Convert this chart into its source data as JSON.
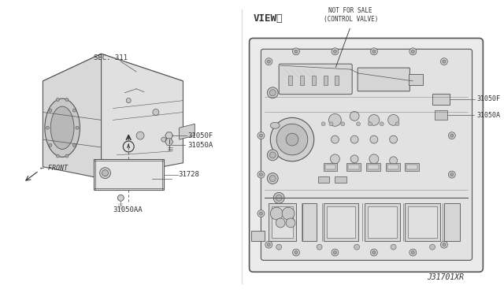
{
  "bg_color": "#ffffff",
  "line_color": "#555555",
  "dark_line": "#333333",
  "light_line": "#999999",
  "title_text": "VIEWⒶ",
  "sec311_label": "SEC. 311",
  "front_label": "← FRONT",
  "part_31050F": "31050F",
  "part_31050A": "31050A",
  "part_31728": "31728",
  "part_31050AA": "31050AA",
  "not_for_sale": "NOT FOR SALE\n(CONTROL VALVE)",
  "diagram_ref": "J31701XR",
  "fig_width": 6.4,
  "fig_height": 3.72,
  "dpi": 100
}
